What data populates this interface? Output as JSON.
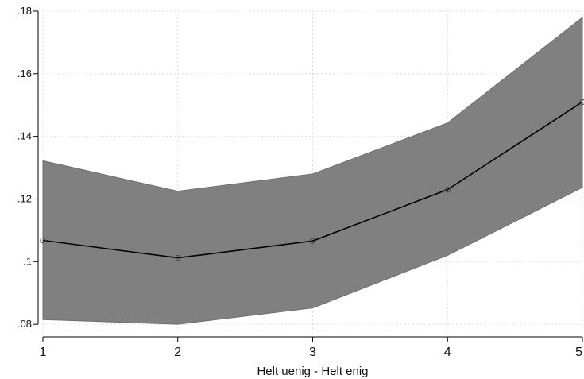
{
  "chart_data": {
    "type": "line",
    "title": "",
    "xlabel": "Helt uenig - Helt enig",
    "ylabel": "",
    "x": [
      1,
      2,
      3,
      4,
      5
    ],
    "x_tick_labels": [
      "1",
      "2",
      "3",
      "4",
      "5"
    ],
    "y_tick_labels": [
      ".08",
      ".1",
      ".12",
      ".14",
      ".16",
      ".18"
    ],
    "y_ticks": [
      0.08,
      0.1,
      0.12,
      0.14,
      0.16,
      0.18
    ],
    "xlim": [
      1,
      5
    ],
    "ylim": [
      0.0775,
      0.1805
    ],
    "grid": true,
    "series": [
      {
        "values": [
          0.1068,
          0.1012,
          0.1066,
          0.123,
          0.151
        ],
        "lower": [
          0.0815,
          0.08,
          0.0852,
          0.102,
          0.1237
        ],
        "upper": [
          0.1322,
          0.1225,
          0.128,
          0.1443,
          0.178
        ],
        "color": "#000000",
        "band_color": "#808080"
      }
    ]
  }
}
